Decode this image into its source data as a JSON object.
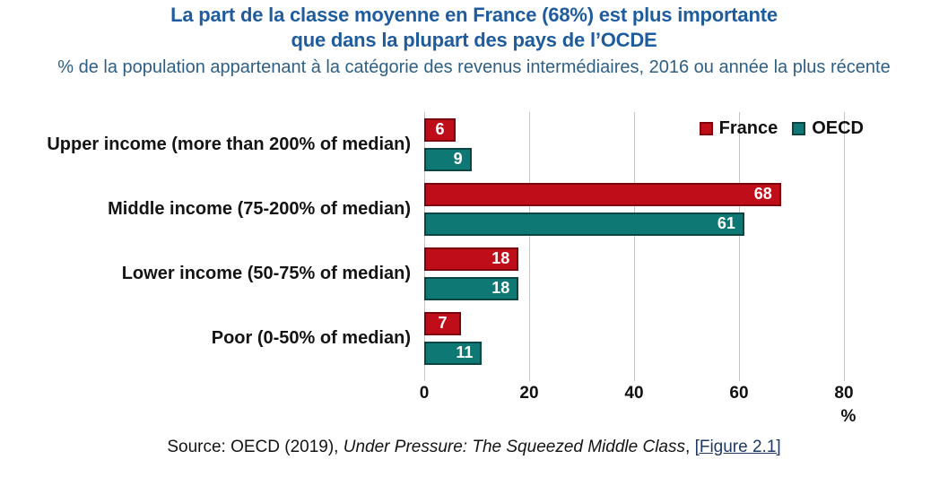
{
  "title": {
    "line1": "La part de la classe moyenne en France (68%) est plus importante",
    "line2": "que dans la plupart des pays de l’OCDE",
    "color": "#1f5c9e"
  },
  "subtitle": {
    "text": "% de la population appartenant à la catégorie des revenus intermédiaires, 2016 ou année la plus récente",
    "color": "#2e5f85"
  },
  "legend": {
    "position": "top-right",
    "items": [
      {
        "label": "France",
        "color": "#c00d1a",
        "border_color": "#7e000c"
      },
      {
        "label": "OECD",
        "color": "#0e7874",
        "border_color": "#0a4543"
      }
    ]
  },
  "chart_data": {
    "type": "bar",
    "orientation": "horizontal",
    "categories": [
      "Upper income (more than 200% of median)",
      "Middle income (75-200% of median)",
      "Lower income (50-75% of median)",
      "Poor (0-50% of median)"
    ],
    "series": [
      {
        "name": "France",
        "color": "#c00d1a",
        "border_color": "#7e000c",
        "values": [
          6,
          68,
          18,
          7
        ]
      },
      {
        "name": "OECD",
        "color": "#0e7874",
        "border_color": "#0a4543",
        "values": [
          9,
          61,
          18,
          11
        ]
      }
    ],
    "value_labels": "inside end, white bold",
    "x_ticks": [
      0,
      20,
      40,
      60,
      80
    ],
    "xlim": [
      0,
      84
    ],
    "xlabel": "%",
    "grid": "vertical light gray",
    "gridline_color": "#c5c5c5"
  },
  "source": {
    "prefix": "Source: OECD (2019), ",
    "italic": "Under Pressure: The Squeezed Middle Class",
    "separator": ", ",
    "link": "[Figure 2.1]",
    "link_color": "#1f3864"
  }
}
